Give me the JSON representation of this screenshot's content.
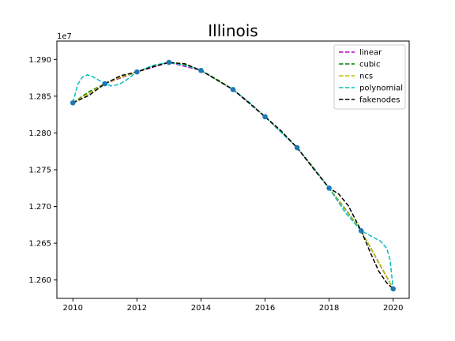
{
  "chart_data": {
    "type": "line",
    "title": "Illinois",
    "xlabel": "",
    "ylabel": "",
    "y_offset_label": "1e7",
    "xlim": [
      2009.5,
      2020.5
    ],
    "ylim": [
      12575000,
      12925000
    ],
    "x_ticks": [
      2010,
      2012,
      2014,
      2016,
      2018,
      2020
    ],
    "x_tick_labels": [
      "2010",
      "2012",
      "2014",
      "2016",
      "2018",
      "2020"
    ],
    "y_ticks": [
      12600000,
      12650000,
      12700000,
      12750000,
      12800000,
      12850000,
      12900000
    ],
    "y_tick_labels": [
      "1.260",
      "1.265",
      "1.270",
      "1.275",
      "1.280",
      "1.285",
      "1.290"
    ],
    "grid": false,
    "legend_position": "top-right",
    "points": {
      "x": [
        2010,
        2011,
        2012,
        2013,
        2014,
        2015,
        2016,
        2017,
        2018,
        2019,
        2020
      ],
      "y": [
        12841000,
        12867000,
        12883000,
        12896000,
        12885000,
        12859000,
        12822000,
        12780000,
        12725000,
        12667000,
        12588000
      ],
      "color": "#1f77b4"
    },
    "series": [
      {
        "name": "linear",
        "color": "#bf00bf",
        "x": [
          2010,
          2011,
          2012,
          2013,
          2014,
          2015,
          2016,
          2017,
          2018,
          2019,
          2020
        ],
        "y": [
          12841000,
          12867000,
          12883000,
          12896000,
          12885000,
          12859000,
          12822000,
          12780000,
          12725000,
          12667000,
          12588000
        ]
      },
      {
        "name": "cubic",
        "color": "#008000",
        "x": [
          2010,
          2010.5,
          2011,
          2011.5,
          2012,
          2012.5,
          2013,
          2013.5,
          2014,
          2014.5,
          2015,
          2015.5,
          2016,
          2016.5,
          2017,
          2017.5,
          2018,
          2018.5,
          2019,
          2019.5,
          2020
        ],
        "y": [
          12841000,
          12856000,
          12867000,
          12876000,
          12883000,
          12891000,
          12896000,
          12893000,
          12885000,
          12873000,
          12859000,
          12841000,
          12822000,
          12802000,
          12780000,
          12754000,
          12725000,
          12697000,
          12667000,
          12628000,
          12588000
        ]
      },
      {
        "name": "ncs",
        "color": "#bfbf00",
        "x": [
          2010,
          2010.5,
          2011,
          2011.5,
          2012,
          2012.5,
          2013,
          2013.5,
          2014,
          2014.5,
          2015,
          2015.5,
          2016,
          2016.5,
          2017,
          2017.5,
          2018,
          2018.5,
          2019,
          2019.5,
          2020
        ],
        "y": [
          12841000,
          12854000,
          12867000,
          12876000,
          12883000,
          12891000,
          12896000,
          12893000,
          12885000,
          12873000,
          12859000,
          12841000,
          12822000,
          12802000,
          12780000,
          12754000,
          12725000,
          12696000,
          12667000,
          12628000,
          12588000
        ]
      },
      {
        "name": "polynomial",
        "color": "#00bfbf",
        "x": [
          2010,
          2010.15,
          2010.3,
          2010.45,
          2010.6,
          2010.8,
          2011,
          2011.2,
          2011.45,
          2011.7,
          2012,
          2012.5,
          2013,
          2013.5,
          2014,
          2014.5,
          2015,
          2015.5,
          2016,
          2016.5,
          2017,
          2017.5,
          2018,
          2018.5,
          2019,
          2019.3,
          2019.6,
          2019.8,
          2019.9,
          2020
        ],
        "y": [
          12841000,
          12866000,
          12876000,
          12879000,
          12877000,
          12872000,
          12867000,
          12864000,
          12866000,
          12873000,
          12883000,
          12892000,
          12896000,
          12892000,
          12885000,
          12872000,
          12859000,
          12842000,
          12822000,
          12801000,
          12780000,
          12753000,
          12725000,
          12692000,
          12667000,
          12660000,
          12653000,
          12643000,
          12628000,
          12588000
        ]
      },
      {
        "name": "fakenodes",
        "color": "#000000",
        "x": [
          2010,
          2010.5,
          2011,
          2011.5,
          2012,
          2012.5,
          2013,
          2013.5,
          2014,
          2014.5,
          2015,
          2015.5,
          2016,
          2016.5,
          2017,
          2017.5,
          2018,
          2018.3,
          2018.6,
          2019,
          2019.3,
          2019.55,
          2019.8,
          2020
        ],
        "y": [
          12841000,
          12851000,
          12867000,
          12878000,
          12883000,
          12890000,
          12896000,
          12894000,
          12885000,
          12872000,
          12859000,
          12841000,
          12822000,
          12803000,
          12780000,
          12752000,
          12725000,
          12717000,
          12701000,
          12667000,
          12636000,
          12612000,
          12596000,
          12588000
        ]
      }
    ]
  }
}
